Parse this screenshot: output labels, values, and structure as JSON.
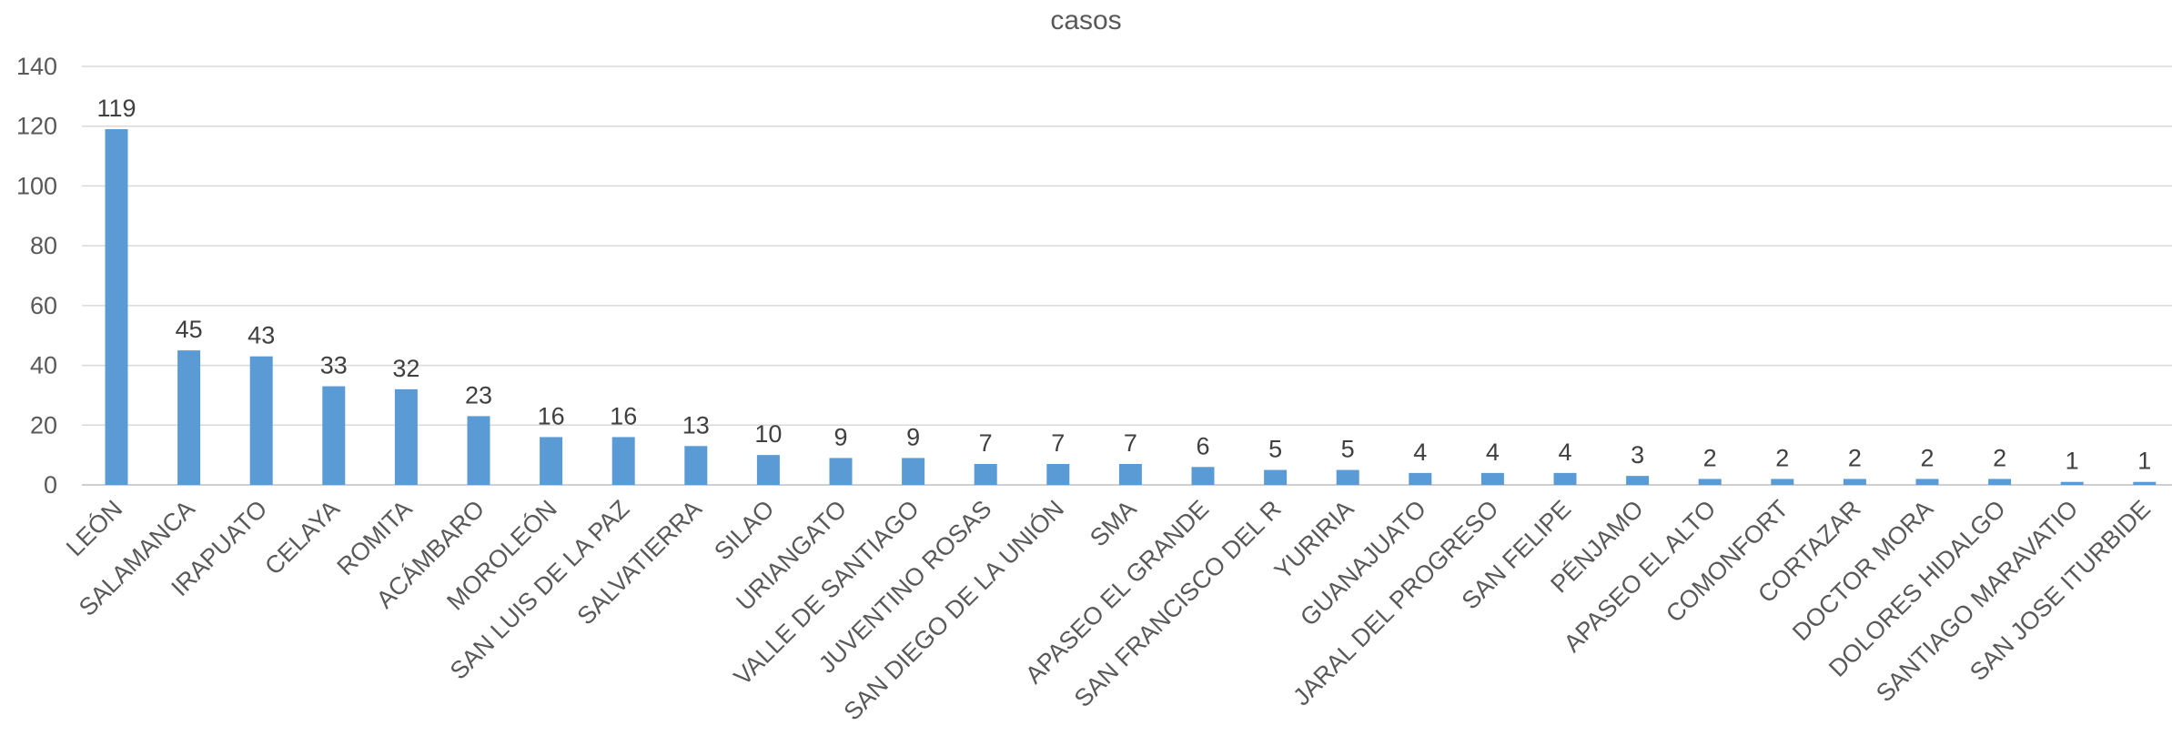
{
  "chart_data": {
    "type": "bar",
    "title": "casos",
    "xlabel": "",
    "ylabel": "",
    "ylim": [
      0,
      140
    ],
    "yticks": [
      0,
      20,
      40,
      60,
      80,
      100,
      120,
      140
    ],
    "grid": true,
    "legend": "none",
    "bar_color": "#5B9BD5",
    "categories": [
      "LEÓN",
      "SALAMANCA",
      "IRAPUATO",
      "CELAYA",
      "ROMITA",
      "ACÁMBARO",
      "MOROLEÓN",
      "SAN LUIS DE LA PAZ",
      "SALVATIERRA",
      "SILAO",
      "URIANGATO",
      "VALLE DE SANTIAGO",
      "JUVENTINO ROSAS",
      "SAN DIEGO DE LA UNIÓN",
      "SMA",
      "APASEO EL GRANDE",
      "SAN FRANCISCO DEL R",
      "YURIRIA",
      "GUANAJUATO",
      "JARAL DEL PROGRESO",
      "SAN FELIPE",
      "PÉNJAMO",
      "APASEO EL ALTO",
      "COMONFORT",
      "CORTAZAR",
      "DOCTOR MORA",
      "DOLORES HIDALGO",
      "SANTIAGO MARAVATIO",
      "SAN JOSE ITURBIDE"
    ],
    "values": [
      119,
      45,
      43,
      33,
      32,
      23,
      16,
      16,
      13,
      10,
      9,
      9,
      7,
      7,
      7,
      6,
      5,
      5,
      4,
      4,
      4,
      3,
      2,
      2,
      2,
      2,
      2,
      1,
      1
    ]
  }
}
